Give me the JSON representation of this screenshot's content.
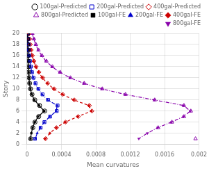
{
  "chart_data": {
    "type": "line",
    "xlabel": "Mean curvatures",
    "ylabel": "Story",
    "xlim": [
      0,
      0.002
    ],
    "ylim": [
      0,
      20
    ],
    "xticks": [
      0,
      0.0004,
      0.0008,
      0.0012,
      0.0016,
      0.002
    ],
    "yticks": [
      0,
      2,
      4,
      6,
      8,
      10,
      12,
      14,
      16,
      18,
      20
    ],
    "grid": true,
    "legend": "upper right",
    "series": [
      {
        "name": "100gal-FE",
        "type": "line",
        "color": "#000000",
        "marker": "square",
        "line_style": "solid",
        "x": [
          5e-06,
          6e-06,
          7e-06,
          8e-06,
          1e-05,
          1.2e-05,
          1.5e-05,
          1.8e-05,
          2.2e-05,
          2.8e-05,
          3.8e-05,
          5.5e-05,
          8.5e-05,
          0.00014,
          0.0002,
          0.00013,
          9e-05,
          6.5e-05,
          5e-05,
          4e-05
        ],
        "values": [
          20,
          19,
          18,
          17,
          16,
          15,
          14,
          13,
          12,
          11,
          10,
          9,
          8,
          7,
          6,
          5,
          4,
          3,
          2,
          1
        ]
      },
      {
        "name": "200gal-FE",
        "type": "line",
        "color": "#0000cc",
        "marker": "triangle",
        "line_style": "dashdot",
        "x": [
          1e-05,
          1.3e-05,
          1.6e-05,
          2e-05,
          2.5e-05,
          3.2e-05,
          4.2e-05,
          5.5e-05,
          7.2e-05,
          9.5e-05,
          0.000128,
          0.000175,
          0.00024,
          0.00035,
          0.00034,
          0.000265,
          0.0002,
          0.000155,
          0.000118,
          9.5e-05
        ],
        "values": [
          20,
          19,
          18,
          17,
          16,
          15,
          14,
          13,
          12,
          11,
          10,
          9,
          8,
          7,
          6,
          5,
          4,
          3,
          2,
          1
        ]
      },
      {
        "name": "400gal-FE",
        "type": "line",
        "color": "#cc0000",
        "marker": "diamond",
        "line_style": "dashed",
        "x": [
          2.2e-05,
          2.8e-05,
          3.6e-05,
          4.6e-05,
          6e-05,
          7.8e-05,
          0.000102,
          0.000135,
          0.000178,
          0.000235,
          0.00031,
          0.00041,
          0.000545,
          0.00072,
          0.00075,
          0.00059,
          0.000445,
          0.00034,
          0.000265,
          0.00021
        ],
        "values": [
          20,
          19,
          18,
          17,
          16,
          15,
          14,
          13,
          12,
          11,
          10,
          9,
          8,
          7,
          6,
          5,
          4,
          3,
          2,
          1
        ]
      },
      {
        "name": "800gal-FE",
        "type": "line",
        "color": "#8800aa",
        "marker": "triangle-down",
        "line_style": "dashdot",
        "x": [
          6e-05,
          7.8e-05,
          0.0001,
          0.00013,
          0.00017,
          0.00022,
          0.00029,
          0.00038,
          0.0005,
          0.00066,
          0.00087,
          0.00114,
          0.00148,
          0.00182,
          0.0019,
          0.00182,
          0.00168,
          0.00152,
          0.0014,
          0.0013
        ],
        "values": [
          20,
          19,
          18,
          17,
          16,
          15,
          14,
          13,
          12,
          11,
          10,
          9,
          8,
          7,
          6,
          5,
          4,
          3,
          2,
          1
        ]
      },
      {
        "name": "100gal-Predicted",
        "type": "scatter",
        "color": "#000000",
        "marker": "open circle",
        "line_style": "none",
        "x": [
          5e-06,
          6e-06,
          7e-06,
          9e-06,
          1.1e-05,
          1.3e-05,
          1.6e-05,
          2e-05,
          2.4e-05,
          3e-05,
          4e-05,
          5.8e-05,
          9e-05,
          0.000145,
          0.000205,
          0.000135,
          9.2e-05,
          6.7e-05,
          4.2e-05
        ],
        "values": [
          20,
          19,
          18,
          17,
          16,
          15,
          14,
          13,
          12,
          11,
          10,
          9,
          8,
          7,
          6,
          5,
          4,
          3,
          1
        ]
      },
      {
        "name": "200gal-Predicted",
        "type": "scatter",
        "color": "#0000cc",
        "marker": "open square",
        "line_style": "none",
        "x": [
          1.1e-05,
          1.4e-05,
          1.7e-05,
          2.1e-05,
          2.7e-05,
          3.4e-05,
          4.4e-05,
          5.8e-05,
          7.5e-05,
          9.8e-05,
          0.000132,
          0.00018,
          0.000245,
          0.000355,
          0.000345,
          0.000268,
          0.000202,
          0.000158,
          9.2e-05
        ],
        "values": [
          20,
          19,
          18,
          17,
          16,
          15,
          14,
          13,
          12,
          11,
          10,
          9,
          8,
          7,
          6,
          5,
          4,
          3,
          1
        ]
      },
      {
        "name": "400gal-Predicted",
        "type": "scatter",
        "color": "#cc0000",
        "marker": "open diamond",
        "line_style": "none",
        "x": [
          2.4e-05,
          3e-05,
          3.8e-05,
          4.8e-05,
          6.2e-05,
          8e-05,
          0.000105,
          0.000138,
          0.000182,
          0.00024,
          0.000315,
          0.000415,
          0.00055,
          0.000725,
          0.000755,
          0.000595,
          0.000448,
          0.000342,
          0.000215
        ],
        "values": [
          20,
          19,
          18,
          17,
          16,
          15,
          14,
          13,
          12,
          11,
          10,
          9,
          8,
          7,
          6,
          5,
          4,
          3,
          1
        ]
      },
      {
        "name": "800gal-Predicted",
        "type": "scatter",
        "color": "#8800aa",
        "marker": "open triangle",
        "line_style": "none",
        "x": [
          6.2e-05,
          8e-05,
          0.000103,
          0.000133,
          0.000174,
          0.000225,
          0.000295,
          0.000385,
          0.000505,
          0.000665,
          0.000875,
          0.001145,
          0.001485,
          0.001825,
          0.001905,
          0.001825,
          0.001685,
          0.001525,
          0.00196
        ],
        "values": [
          20,
          19,
          18,
          17,
          16,
          15,
          14,
          13,
          12,
          11,
          10,
          9,
          8,
          7,
          6,
          5,
          4,
          3,
          1
        ]
      }
    ]
  }
}
